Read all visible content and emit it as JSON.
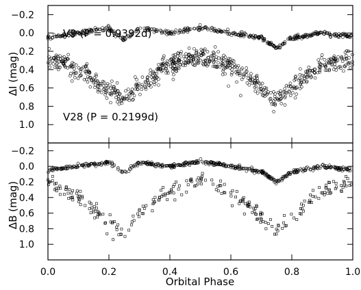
{
  "chart_data": [
    {
      "panel": "top",
      "type": "scatter",
      "ylabel": "ΔI (mag)",
      "xlim": [
        0.0,
        1.0
      ],
      "ylim": [
        1.2,
        -0.3
      ],
      "y_inverted": true,
      "yticks": [
        -0.2,
        0.0,
        0.2,
        0.4,
        0.6,
        0.8,
        1.0
      ],
      "ytick_labels": [
        "−0.2",
        "0.0",
        "0.2",
        "0.4",
        "0.6",
        "0.8",
        "1.0"
      ],
      "annotations": [
        "V9 (P = 0.9392d)",
        "V28 (P = 0.2199d)"
      ],
      "series": [
        {
          "marker": "circle",
          "x": [
            0.0,
            0.1,
            0.2,
            0.25,
            0.3,
            0.4,
            0.5,
            0.6,
            0.7,
            0.75,
            0.8,
            0.9,
            1.0
          ],
          "y": [
            0.05,
            0.0,
            -0.05,
            0.08,
            -0.05,
            0.0,
            -0.06,
            0.0,
            0.05,
            0.17,
            0.05,
            0.0,
            0.04
          ]
        },
        {
          "marker": "circle",
          "x": [
            0.0,
            0.1,
            0.2,
            0.25,
            0.3,
            0.4,
            0.5,
            0.6,
            0.7,
            0.75,
            0.8,
            0.9,
            1.0
          ],
          "y": [
            0.28,
            0.4,
            0.62,
            0.72,
            0.58,
            0.32,
            0.26,
            0.34,
            0.6,
            0.72,
            0.6,
            0.35,
            0.28
          ]
        }
      ]
    },
    {
      "panel": "bottom",
      "type": "scatter",
      "xlabel": "Orbital Phase",
      "ylabel": "ΔB (mag)",
      "xlim": [
        0.0,
        1.0
      ],
      "ylim": [
        1.2,
        -0.3
      ],
      "y_inverted": true,
      "xticks": [
        0.0,
        0.2,
        0.4,
        0.6,
        0.8,
        1.0
      ],
      "xtick_labels": [
        "0.0",
        "0.2",
        "0.4",
        "0.6",
        "0.8",
        "1.0"
      ],
      "yticks": [
        -0.2,
        0.0,
        0.2,
        0.4,
        0.6,
        0.8,
        1.0
      ],
      "ytick_labels": [
        "−0.2",
        "0.0",
        "0.2",
        "0.4",
        "0.6",
        "0.8",
        "1.0"
      ],
      "series": [
        {
          "marker": "circle",
          "x": [
            0.0,
            0.1,
            0.2,
            0.25,
            0.3,
            0.4,
            0.5,
            0.6,
            0.7,
            0.75,
            0.8,
            0.9,
            1.0
          ],
          "y": [
            0.05,
            0.0,
            -0.05,
            0.08,
            -0.05,
            0.0,
            -0.06,
            0.0,
            0.07,
            0.2,
            0.07,
            0.0,
            0.05
          ]
        },
        {
          "marker": "square",
          "x": [
            0.0,
            0.1,
            0.2,
            0.25,
            0.3,
            0.4,
            0.5,
            0.6,
            0.7,
            0.75,
            0.8,
            0.9,
            1.0
          ],
          "y": [
            0.2,
            0.38,
            0.72,
            0.85,
            0.6,
            0.3,
            0.18,
            0.32,
            0.65,
            0.82,
            0.65,
            0.32,
            0.2
          ]
        }
      ]
    }
  ]
}
